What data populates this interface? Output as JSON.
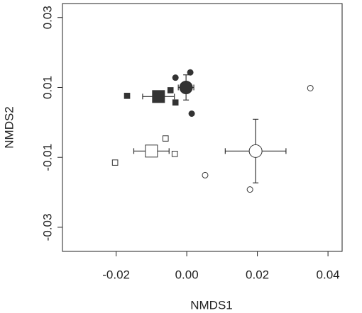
{
  "chart_data": {
    "type": "scatter",
    "x_label": "NMDS1",
    "y_label": "NMDS2",
    "xlim": [
      -0.0352,
      0.044
    ],
    "ylim": [
      -0.0369,
      0.034
    ],
    "xticks": [
      -0.02,
      {
        "value": 0,
        "label": "0.00"
      },
      0.02,
      0.04
    ],
    "yticks": [
      -0.03,
      -0.01,
      0.01,
      0.03
    ],
    "color": "#333333",
    "series": [
      {
        "marker": "circle",
        "filled": true,
        "size": "small",
        "x": [
          -0.0032,
          0.001,
          0.0014
        ],
        "y": [
          0.0128,
          0.0143,
          0.0025
        ]
      },
      {
        "marker": "square",
        "filled": true,
        "size": "small",
        "x": [
          -0.0169,
          -0.0046,
          -0.0032
        ],
        "y": [
          0.0076,
          0.0092,
          0.0057
        ]
      },
      {
        "marker": "circle",
        "filled": true,
        "size": "large",
        "x": [
          -0.0002
        ],
        "y": [
          0.01
        ],
        "xerr": [
          0.0022
        ],
        "yerr": [
          0.0036
        ]
      },
      {
        "marker": "square",
        "filled": true,
        "size": "large",
        "x": [
          -0.008
        ],
        "y": [
          0.0074
        ],
        "xerr": [
          0.0045
        ],
        "yerr": [
          0.001
        ]
      },
      {
        "marker": "square",
        "filled": false,
        "size": "small",
        "x": [
          -0.0203,
          -0.006,
          -0.0034
        ],
        "y": [
          -0.0115,
          -0.0046,
          -0.009
        ]
      },
      {
        "marker": "square",
        "filled": false,
        "size": "large",
        "x": [
          -0.01
        ],
        "y": [
          -0.0082
        ],
        "xerr": [
          0.005
        ],
        "yerr": [
          0.0016
        ]
      },
      {
        "marker": "circle",
        "filled": false,
        "size": "small",
        "x": [
          0.035,
          0.0052,
          0.0179
        ],
        "y": [
          0.0098,
          -0.0151,
          -0.0192
        ]
      },
      {
        "marker": "circle",
        "filled": false,
        "size": "large",
        "x": [
          0.0195
        ],
        "y": [
          -0.0082
        ],
        "xerr": [
          0.0086
        ],
        "yerr": [
          0.0091
        ]
      }
    ]
  }
}
